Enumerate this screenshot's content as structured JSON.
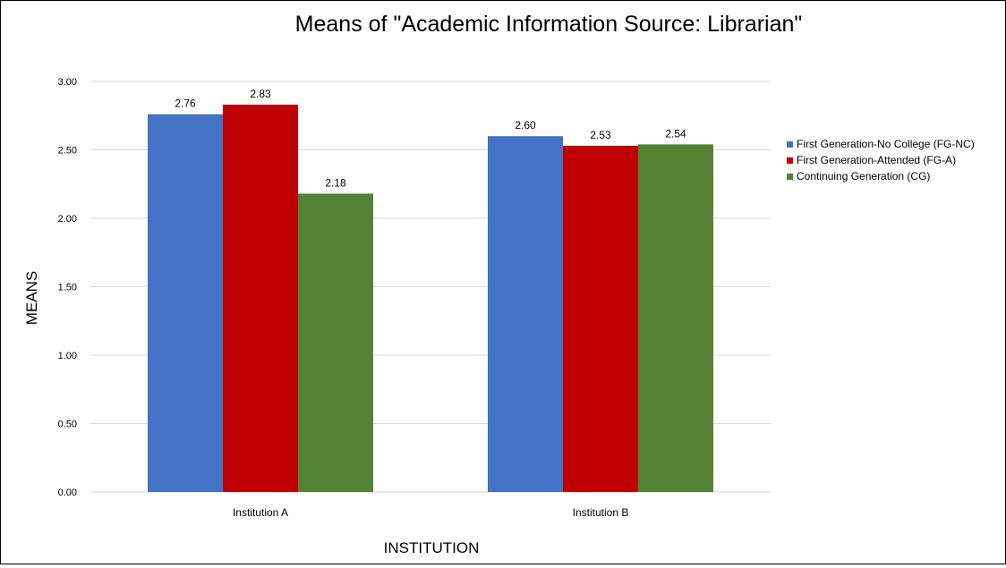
{
  "chart_data": {
    "type": "bar",
    "title": "Means of \"Academic Information Source: Librarian\"",
    "xlabel": "INSTITUTION",
    "ylabel": "MEANS",
    "categories": [
      "Institution A",
      "Institution B"
    ],
    "ylim": [
      0,
      3.0
    ],
    "yticks": [
      "0.00",
      "0.50",
      "1.00",
      "1.50",
      "2.00",
      "2.50",
      "3.00"
    ],
    "grid": true,
    "legend_position": "right",
    "series": [
      {
        "name": "First Generation-No College (FG-NC)",
        "color": "#4472c4",
        "values": [
          2.76,
          2.6
        ],
        "labels": [
          "2.76",
          "2.60"
        ]
      },
      {
        "name": "First Generation-Attended (FG-A)",
        "color": "#c00000",
        "values": [
          2.83,
          2.53
        ],
        "labels": [
          "2.83",
          "2.53"
        ]
      },
      {
        "name": "Continuing Generation (CG)",
        "color": "#548235",
        "values": [
          2.18,
          2.54
        ],
        "labels": [
          "2.18",
          "2.54"
        ]
      }
    ]
  }
}
